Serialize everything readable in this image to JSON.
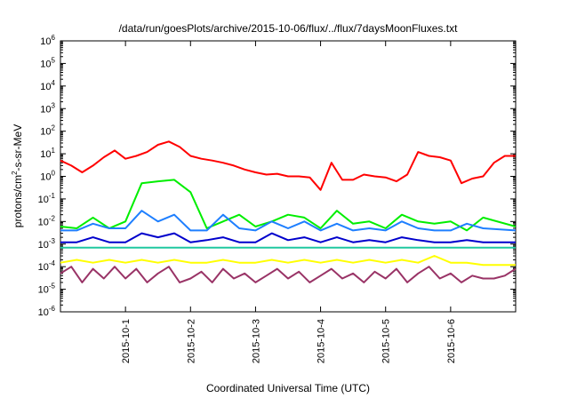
{
  "chart_data": {
    "type": "line",
    "title": "/data/run/goesPlots/archive/2015-10-06/flux/../flux/7daysMoonFluxes.txt",
    "xlabel": "Coordinated Universal Time (UTC)",
    "ylabel_base": "protons/cm",
    "ylabel_sup": "2",
    "ylabel_rest": "-s-sr-MeV",
    "y_scale": "log",
    "ylim": [
      1e-06,
      1000000.0
    ],
    "xlim": [
      "2015-09-30T00:00",
      "2015-10-07T00:00"
    ],
    "grid": false,
    "legend": "none",
    "y_ticks": [
      {
        "base": "10",
        "exp": "-6",
        "value": 1e-06
      },
      {
        "base": "10",
        "exp": "-5",
        "value": 1e-05
      },
      {
        "base": "10",
        "exp": "-4",
        "value": 0.0001
      },
      {
        "base": "10",
        "exp": "-3",
        "value": 0.001
      },
      {
        "base": "10",
        "exp": "-2",
        "value": 0.01
      },
      {
        "base": "10",
        "exp": "-1",
        "value": 0.1
      },
      {
        "base": "10",
        "exp": "0",
        "value": 1.0
      },
      {
        "base": "10",
        "exp": "1",
        "value": 10.0
      },
      {
        "base": "10",
        "exp": "2",
        "value": 100.0
      },
      {
        "base": "10",
        "exp": "3",
        "value": 1000.0
      },
      {
        "base": "10",
        "exp": "4",
        "value": 10000.0
      },
      {
        "base": "10",
        "exp": "5",
        "value": 100000.0
      },
      {
        "base": "10",
        "exp": "6",
        "value": 1000000.0
      }
    ],
    "x_ticks": [
      {
        "label": "2015-10-1",
        "value": "2015-10-01T00:00"
      },
      {
        "label": "2015-10-2",
        "value": "2015-10-02T00:00"
      },
      {
        "label": "2015-10-3",
        "value": "2015-10-03T00:00"
      },
      {
        "label": "2015-10-4",
        "value": "2015-10-04T00:00"
      },
      {
        "label": "2015-10-5",
        "value": "2015-10-05T00:00"
      },
      {
        "label": "2015-10-6",
        "value": "2015-10-06T00:00"
      }
    ],
    "series": [
      {
        "color": "#ff0000",
        "x": [
          "2015-09-30T00:00",
          "2015-09-30T04:00",
          "2015-09-30T08:00",
          "2015-09-30T12:00",
          "2015-09-30T16:00",
          "2015-09-30T20:00",
          "2015-10-01T00:00",
          "2015-10-01T04:00",
          "2015-10-01T08:00",
          "2015-10-01T12:00",
          "2015-10-01T16:00",
          "2015-10-01T20:00",
          "2015-10-02T00:00",
          "2015-10-02T04:00",
          "2015-10-02T08:00",
          "2015-10-02T12:00",
          "2015-10-02T16:00",
          "2015-10-02T20:00",
          "2015-10-03T00:00",
          "2015-10-03T04:00",
          "2015-10-03T08:00",
          "2015-10-03T12:00",
          "2015-10-03T16:00",
          "2015-10-03T20:00",
          "2015-10-04T00:00",
          "2015-10-04T04:00",
          "2015-10-04T08:00",
          "2015-10-04T12:00",
          "2015-10-04T16:00",
          "2015-10-04T20:00",
          "2015-10-05T00:00",
          "2015-10-05T04:00",
          "2015-10-05T08:00",
          "2015-10-05T12:00",
          "2015-10-05T16:00",
          "2015-10-05T20:00",
          "2015-10-06T00:00",
          "2015-10-06T04:00",
          "2015-10-06T08:00",
          "2015-10-06T12:00",
          "2015-10-06T16:00",
          "2015-10-06T20:00",
          "2015-10-06T23:59"
        ],
        "y": [
          5,
          3,
          1.5,
          3,
          7,
          14,
          6,
          8,
          12,
          25,
          35,
          20,
          8,
          6,
          5,
          4,
          3,
          2,
          1.5,
          1.2,
          1.3,
          1.0,
          1.0,
          0.9,
          0.25,
          4,
          0.7,
          0.7,
          1.2,
          1.0,
          0.9,
          0.6,
          1.2,
          12,
          8,
          7,
          5,
          0.5,
          0.8,
          1.0,
          4,
          8,
          8
        ]
      },
      {
        "color": "#00ee00",
        "x": [
          "2015-09-30T00:00",
          "2015-09-30T06:00",
          "2015-09-30T12:00",
          "2015-09-30T18:00",
          "2015-10-01T00:00",
          "2015-10-01T06:00",
          "2015-10-01T12:00",
          "2015-10-01T18:00",
          "2015-10-02T00:00",
          "2015-10-02T06:00",
          "2015-10-02T12:00",
          "2015-10-02T18:00",
          "2015-10-03T00:00",
          "2015-10-03T06:00",
          "2015-10-03T12:00",
          "2015-10-03T18:00",
          "2015-10-04T00:00",
          "2015-10-04T06:00",
          "2015-10-04T12:00",
          "2015-10-04T18:00",
          "2015-10-05T00:00",
          "2015-10-05T06:00",
          "2015-10-05T12:00",
          "2015-10-05T18:00",
          "2015-10-06T00:00",
          "2015-10-06T06:00",
          "2015-10-06T12:00",
          "2015-10-06T23:59"
        ],
        "y": [
          0.006,
          0.005,
          0.015,
          0.005,
          0.01,
          0.5,
          0.6,
          0.7,
          0.2,
          0.005,
          0.01,
          0.02,
          0.006,
          0.01,
          0.02,
          0.015,
          0.005,
          0.03,
          0.008,
          0.01,
          0.005,
          0.02,
          0.01,
          0.008,
          0.01,
          0.004,
          0.015,
          0.006
        ]
      },
      {
        "color": "#1e7fff",
        "x": [
          "2015-09-30T00:00",
          "2015-09-30T06:00",
          "2015-09-30T12:00",
          "2015-09-30T18:00",
          "2015-10-01T00:00",
          "2015-10-01T06:00",
          "2015-10-01T12:00",
          "2015-10-01T18:00",
          "2015-10-02T00:00",
          "2015-10-02T06:00",
          "2015-10-02T12:00",
          "2015-10-02T18:00",
          "2015-10-03T00:00",
          "2015-10-03T06:00",
          "2015-10-03T12:00",
          "2015-10-03T18:00",
          "2015-10-04T00:00",
          "2015-10-04T06:00",
          "2015-10-04T12:00",
          "2015-10-04T18:00",
          "2015-10-05T00:00",
          "2015-10-05T06:00",
          "2015-10-05T12:00",
          "2015-10-05T18:00",
          "2015-10-06T00:00",
          "2015-10-06T06:00",
          "2015-10-06T12:00",
          "2015-10-06T23:59"
        ],
        "y": [
          0.004,
          0.004,
          0.008,
          0.005,
          0.005,
          0.03,
          0.01,
          0.02,
          0.004,
          0.004,
          0.02,
          0.005,
          0.004,
          0.01,
          0.005,
          0.01,
          0.004,
          0.008,
          0.004,
          0.005,
          0.004,
          0.01,
          0.005,
          0.004,
          0.004,
          0.008,
          0.005,
          0.004
        ]
      },
      {
        "color": "#0000cc",
        "x": [
          "2015-09-30T00:00",
          "2015-09-30T06:00",
          "2015-09-30T12:00",
          "2015-09-30T18:00",
          "2015-10-01T00:00",
          "2015-10-01T06:00",
          "2015-10-01T12:00",
          "2015-10-01T18:00",
          "2015-10-02T00:00",
          "2015-10-02T06:00",
          "2015-10-02T12:00",
          "2015-10-02T18:00",
          "2015-10-03T00:00",
          "2015-10-03T06:00",
          "2015-10-03T12:00",
          "2015-10-03T18:00",
          "2015-10-04T00:00",
          "2015-10-04T06:00",
          "2015-10-04T12:00",
          "2015-10-04T18:00",
          "2015-10-05T00:00",
          "2015-10-05T06:00",
          "2015-10-05T12:00",
          "2015-10-05T18:00",
          "2015-10-06T00:00",
          "2015-10-06T06:00",
          "2015-10-06T12:00",
          "2015-10-06T23:59"
        ],
        "y": [
          0.0012,
          0.0012,
          0.002,
          0.0012,
          0.0012,
          0.003,
          0.002,
          0.003,
          0.0012,
          0.0015,
          0.002,
          0.0012,
          0.0012,
          0.003,
          0.0015,
          0.002,
          0.0012,
          0.002,
          0.0012,
          0.0015,
          0.0012,
          0.002,
          0.0015,
          0.0012,
          0.0012,
          0.0015,
          0.0012,
          0.0012
        ]
      },
      {
        "color": "#20c8a0",
        "x": [
          "2015-09-30T00:00",
          "2015-10-01T00:00",
          "2015-10-02T00:00",
          "2015-10-03T00:00",
          "2015-10-04T00:00",
          "2015-10-05T00:00",
          "2015-10-06T00:00",
          "2015-10-06T23:59"
        ],
        "y": [
          0.0007,
          0.0007,
          0.0007,
          0.0007,
          0.0007,
          0.0007,
          0.0007,
          0.0007
        ]
      },
      {
        "color": "#ffff00",
        "x": [
          "2015-09-30T00:00",
          "2015-09-30T06:00",
          "2015-09-30T12:00",
          "2015-09-30T18:00",
          "2015-10-01T00:00",
          "2015-10-01T06:00",
          "2015-10-01T12:00",
          "2015-10-01T18:00",
          "2015-10-02T00:00",
          "2015-10-02T06:00",
          "2015-10-02T12:00",
          "2015-10-02T18:00",
          "2015-10-03T00:00",
          "2015-10-03T06:00",
          "2015-10-03T12:00",
          "2015-10-03T18:00",
          "2015-10-04T00:00",
          "2015-10-04T06:00",
          "2015-10-04T12:00",
          "2015-10-04T18:00",
          "2015-10-05T00:00",
          "2015-10-05T06:00",
          "2015-10-05T12:00",
          "2015-10-05T18:00",
          "2015-10-06T00:00",
          "2015-10-06T06:00",
          "2015-10-06T12:00",
          "2015-10-06T23:59"
        ],
        "y": [
          0.00015,
          0.0002,
          0.00015,
          0.0002,
          0.00015,
          0.0002,
          0.00015,
          0.0002,
          0.00015,
          0.00015,
          0.0002,
          0.00015,
          0.00015,
          0.0002,
          0.00015,
          0.0002,
          0.00015,
          0.0002,
          0.00015,
          0.0002,
          0.00015,
          0.0002,
          0.00015,
          0.0003,
          0.00015,
          0.00015,
          0.00012,
          0.00012
        ]
      },
      {
        "color": "#993366",
        "x": [
          "2015-09-30T00:00",
          "2015-09-30T04:00",
          "2015-09-30T08:00",
          "2015-09-30T12:00",
          "2015-09-30T16:00",
          "2015-09-30T20:00",
          "2015-10-01T00:00",
          "2015-10-01T04:00",
          "2015-10-01T08:00",
          "2015-10-01T12:00",
          "2015-10-01T16:00",
          "2015-10-01T20:00",
          "2015-10-02T00:00",
          "2015-10-02T04:00",
          "2015-10-02T08:00",
          "2015-10-02T12:00",
          "2015-10-02T16:00",
          "2015-10-02T20:00",
          "2015-10-03T00:00",
          "2015-10-03T04:00",
          "2015-10-03T08:00",
          "2015-10-03T12:00",
          "2015-10-03T16:00",
          "2015-10-03T20:00",
          "2015-10-04T00:00",
          "2015-10-04T04:00",
          "2015-10-04T08:00",
          "2015-10-04T12:00",
          "2015-10-04T16:00",
          "2015-10-04T20:00",
          "2015-10-05T00:00",
          "2015-10-05T04:00",
          "2015-10-05T08:00",
          "2015-10-05T12:00",
          "2015-10-05T16:00",
          "2015-10-05T20:00",
          "2015-10-06T00:00",
          "2015-10-06T04:00",
          "2015-10-06T08:00",
          "2015-10-06T12:00",
          "2015-10-06T16:00",
          "2015-10-06T20:00",
          "2015-10-06T23:59"
        ],
        "y": [
          5e-05,
          0.0001,
          2e-05,
          8e-05,
          3e-05,
          0.0001,
          3e-05,
          8e-05,
          2e-05,
          5e-05,
          0.0001,
          2e-05,
          3e-05,
          6e-05,
          2e-05,
          8e-05,
          3e-05,
          5e-05,
          2e-05,
          4e-05,
          8e-05,
          3e-05,
          6e-05,
          2e-05,
          4e-05,
          8e-05,
          3e-05,
          5e-05,
          2e-05,
          6e-05,
          3e-05,
          8e-05,
          2e-05,
          5e-05,
          0.0001,
          3e-05,
          5e-05,
          2e-05,
          4e-05,
          3e-05,
          3e-05,
          4e-05,
          8e-05
        ]
      }
    ]
  }
}
